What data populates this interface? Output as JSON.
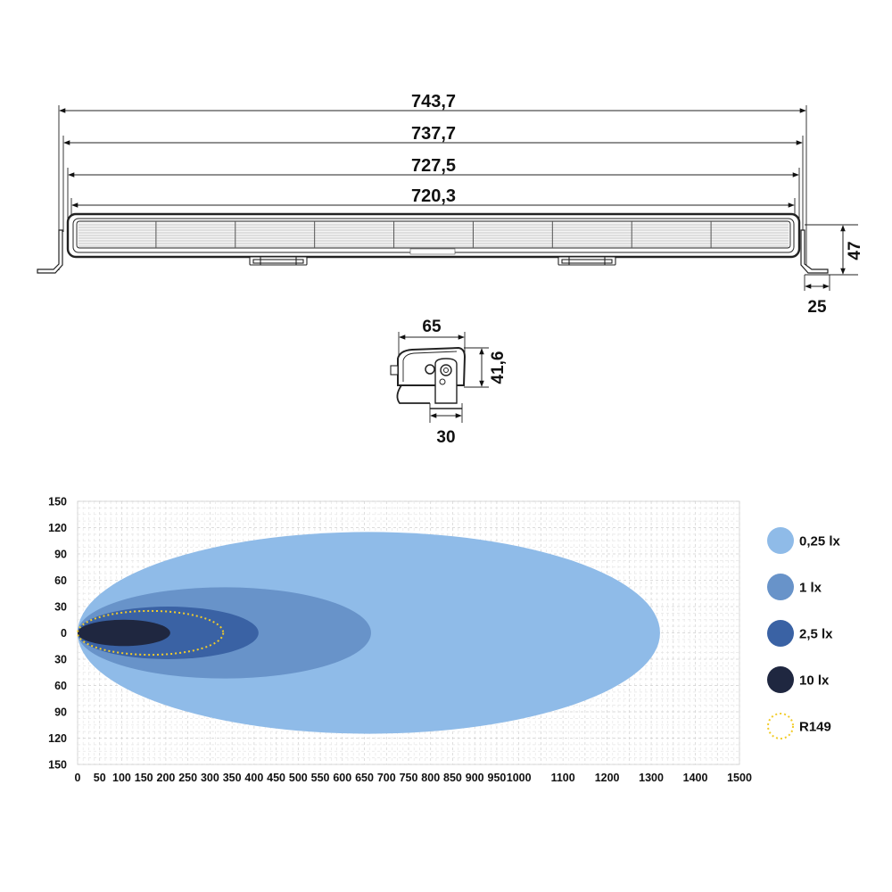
{
  "dimensions": {
    "overall_length": "743,7",
    "bracket_length": "737,7",
    "housing_length": "727,5",
    "lens_length": "720,3",
    "height": "47",
    "bracket_foot": "25",
    "depth": "65",
    "side_height": "41,6",
    "mount_width": "30"
  },
  "chart_data": {
    "type": "area",
    "x_ticks": [
      "0",
      "50",
      "100",
      "150",
      "200",
      "250",
      "300",
      "350",
      "400",
      "450",
      "500",
      "550",
      "600",
      "650",
      "700",
      "750",
      "800",
      "850",
      "900",
      "950",
      "1000",
      "1100",
      "1200",
      "1300",
      "1400",
      "1500"
    ],
    "y_ticks": [
      "150",
      "120",
      "90",
      "60",
      "30",
      "0",
      "30",
      "60",
      "90",
      "120",
      "150"
    ],
    "xlim": [
      0,
      1500
    ],
    "ylim": [
      -150,
      150
    ],
    "grid": true,
    "legend_position": "right",
    "series": [
      {
        "name": "0,25 lx",
        "reach": 1320,
        "half_width": 115,
        "color": "#8fbbe8"
      },
      {
        "name": "1 lx",
        "reach": 665,
        "half_width": 52,
        "color": "#6893c9"
      },
      {
        "name": "2,5 lx",
        "reach": 410,
        "half_width": 30,
        "color": "#3a62a4"
      },
      {
        "name": "10 lx",
        "reach": 210,
        "half_width": 15,
        "color": "#1f2740"
      }
    ],
    "reference": {
      "name": "R149",
      "reach": 330,
      "half_width": 25,
      "color": "#f2cc2a"
    }
  }
}
